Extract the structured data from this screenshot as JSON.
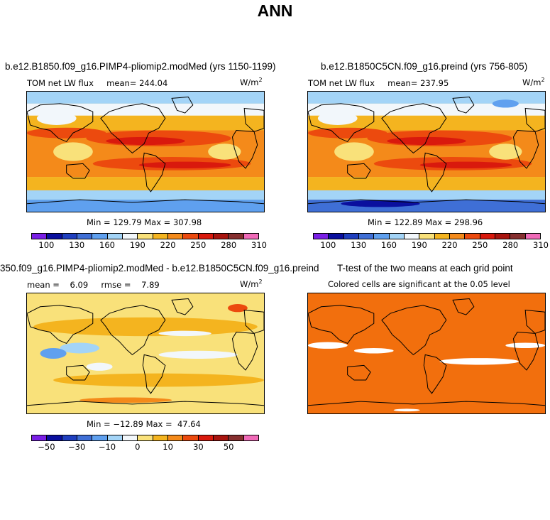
{
  "page_title": "ANN",
  "panels": [
    {
      "title": "b.e12.B1850.f09_g16.PIMP4-pliomip2.modMed (yrs 1150-1199)",
      "subtitle": "TOM net LW flux     mean= 244.04",
      "units": "W/m",
      "units_exp": "2",
      "minmax": "Min = 129.79 Max = 307.98",
      "map_style": "flux_a"
    },
    {
      "title": "b.e12.B1850C5CN.f09_g16.preind (yrs 756-805)",
      "subtitle": "TOM net LW flux     mean= 237.95",
      "units": "W/m",
      "units_exp": "2",
      "minmax": "Min = 122.89 Max = 298.96",
      "map_style": "flux_b"
    },
    {
      "title": "350.f09_g16.PIMP4-pliomip2.modMed - b.e12.B1850C5CN.f09_g16.preind",
      "subtitle": "mean =    6.09     rmse =    7.89",
      "units": "W/m",
      "units_exp": "2",
      "minmax": "Min = −12.89 Max =  47.64",
      "map_style": "diff"
    },
    {
      "title": "T-test of the two means at each grid point",
      "subtitle": "Colored cells are significant at the 0.05 level",
      "map_style": "ttest"
    }
  ],
  "colorbar_flux": {
    "colors": [
      "#7a1fe6",
      "#0a0f9e",
      "#1f3fbf",
      "#3f6fd6",
      "#5fa0ef",
      "#a3d4f7",
      "#f2f7fb",
      "#f9e17a",
      "#f4b41f",
      "#f48a1a",
      "#ec4a0e",
      "#d9190d",
      "#a8140f",
      "#862f2f",
      "#f06ab8"
    ],
    "ticks": [
      "100",
      "130",
      "160",
      "190",
      "220",
      "250",
      "280",
      "310"
    ]
  },
  "colorbar_diff": {
    "colors": [
      "#7a1fe6",
      "#0a0f9e",
      "#1f3fbf",
      "#3f6fd6",
      "#5fa0ef",
      "#a3d4f7",
      "#f2f7fb",
      "#f9e17a",
      "#f4b41f",
      "#f48a1a",
      "#ec4a0e",
      "#d9190d",
      "#a8140f",
      "#862f2f",
      "#f06ab8"
    ],
    "ticks": [
      "−50",
      "−30",
      "−10",
      "0",
      "10",
      "30",
      "50"
    ]
  }
}
